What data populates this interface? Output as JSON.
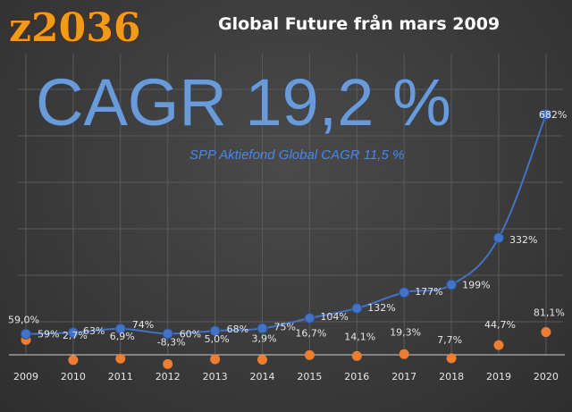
{
  "logo_text": "z2036",
  "title": "Global Future från mars 2009",
  "cagr_text": "CAGR 19,2 %",
  "subtitle": "SPP Aktiefond Global CAGR 11,5 %",
  "colors": {
    "background": "#3a3a3a",
    "series_main": "#4472c4",
    "series_annual": "#ed7d31",
    "logo": "#f09a1c",
    "cagr": "#6b9bd6",
    "subtitle": "#4a86e8"
  },
  "chart_data": {
    "type": "line",
    "x": [
      "2009",
      "2010",
      "2011",
      "2012",
      "2013",
      "2014",
      "2015",
      "2016",
      "2017",
      "2018",
      "2019",
      "2020"
    ],
    "grid": true,
    "legend": "none",
    "series": [
      {
        "values": [
          59,
          63,
          74,
          60,
          68,
          75,
          104,
          132,
          177,
          199,
          332,
          682
        ],
        "labels": [
          "59%",
          "63%",
          "74%",
          "60%",
          "68%",
          "75%",
          "104%",
          "132%",
          "177%",
          "199%",
          "332%",
          "682%"
        ],
        "color": "#4472c4",
        "style": "line-with-markers"
      },
      {
        "values": [
          59.0,
          2.7,
          6.9,
          -8.3,
          5.0,
          3.9,
          16.7,
          14.1,
          19.3,
          7.7,
          44.7,
          81.1
        ],
        "labels": [
          "59,0%",
          "2,7%",
          "6,9%",
          "-8,3%",
          "5,0%",
          "3,9%",
          "16,7%",
          "14,1%",
          "19,3%",
          "7,7%",
          "44,7%",
          "81,1%"
        ],
        "color": "#ed7d31",
        "style": "markers"
      }
    ]
  }
}
